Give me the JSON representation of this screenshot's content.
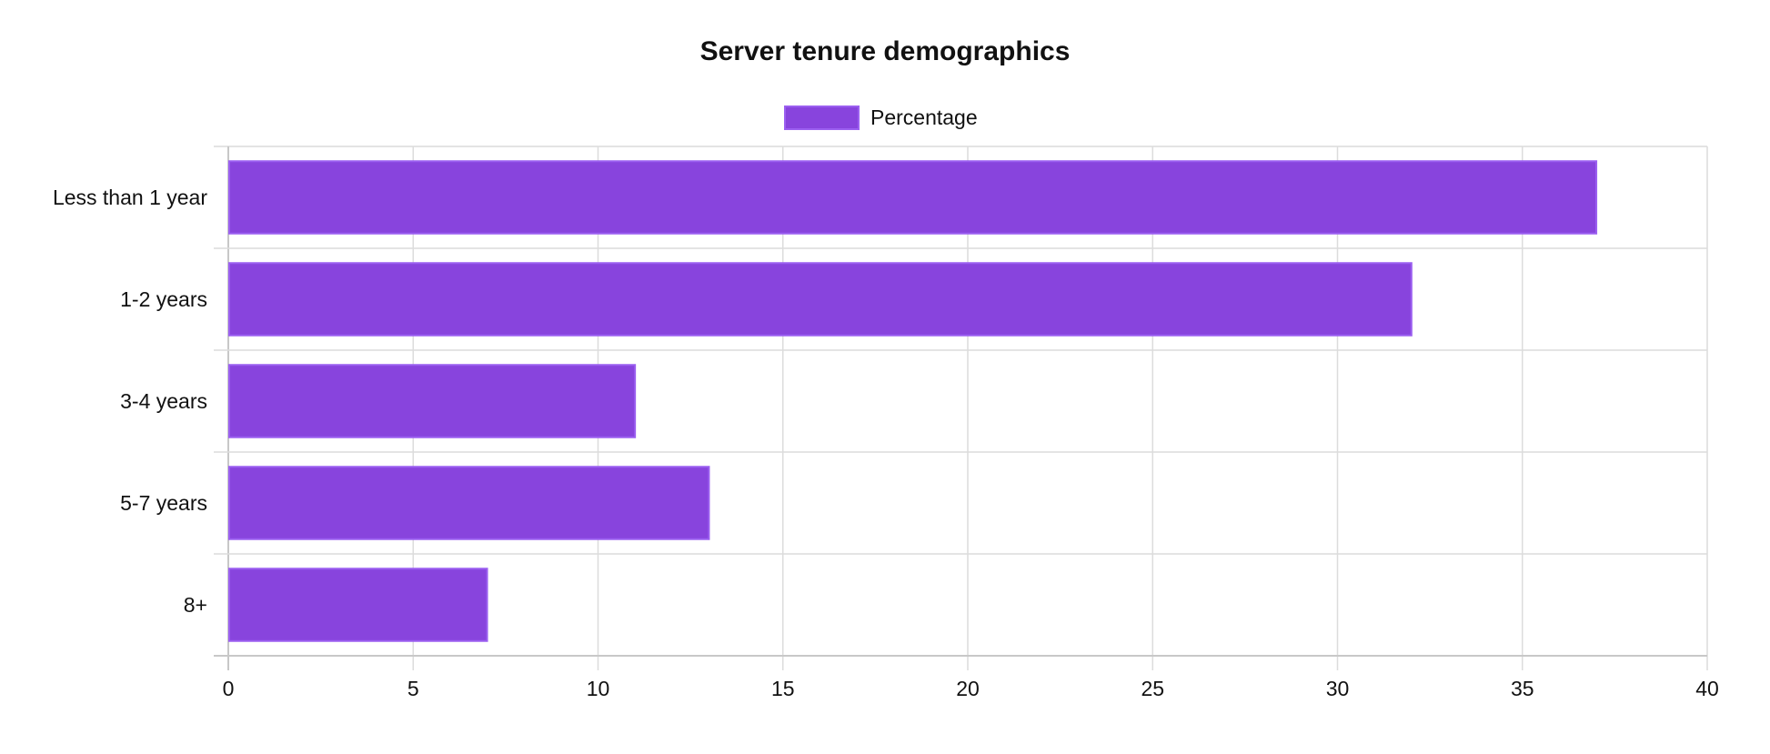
{
  "chart_data": {
    "type": "bar",
    "orientation": "horizontal",
    "title": "Server tenure demographics",
    "categories": [
      "Less than 1 year",
      "1-2 years",
      "3-4 years",
      "5-7 years",
      "8+"
    ],
    "series": [
      {
        "name": "Percentage",
        "values": [
          37,
          32,
          11,
          13,
          7
        ]
      }
    ],
    "xlim": [
      0,
      40
    ],
    "x_ticks": [
      0,
      5,
      10,
      15,
      20,
      25,
      30,
      35,
      40
    ],
    "grid": true,
    "legend_position": "top-center",
    "colors": {
      "bar_fill": "#8844dd",
      "bar_stroke": "#9b5ff0",
      "grid": "#dcdcdc",
      "axis": "#c8c8c8",
      "text": "#111111"
    }
  }
}
